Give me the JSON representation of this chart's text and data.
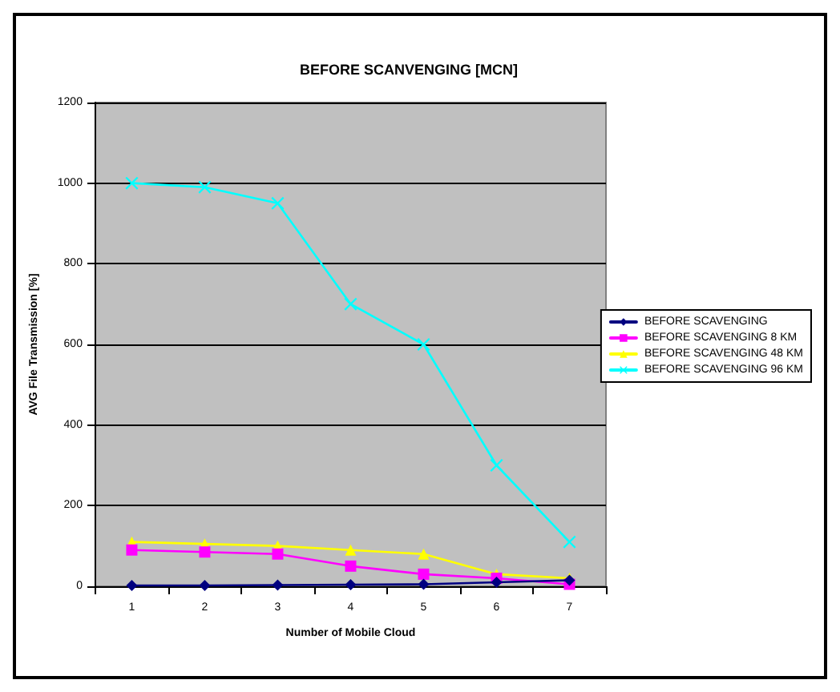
{
  "chart_data": {
    "type": "line",
    "title": "BEFORE SCANVENGING [MCN]",
    "xlabel": "Number of Mobile Cloud",
    "ylabel": "AVG File Transmission [%]",
    "categories": [
      "1",
      "2",
      "3",
      "4",
      "5",
      "6",
      "7"
    ],
    "series": [
      {
        "name": "BEFORE SCAVENGING",
        "color": "#000080",
        "marker": "diamond",
        "values": [
          2,
          2,
          3,
          4,
          5,
          10,
          15
        ]
      },
      {
        "name": "BEFORE SCAVENGING 8 KM",
        "color": "#ff00ff",
        "marker": "square",
        "values": [
          90,
          85,
          80,
          50,
          30,
          20,
          5
        ]
      },
      {
        "name": "BEFORE SCAVENGING 48 KM",
        "color": "#ffff00",
        "marker": "triangle",
        "values": [
          110,
          105,
          100,
          90,
          80,
          30,
          20
        ]
      },
      {
        "name": "BEFORE SCAVENGING 96 KM",
        "color": "#00ffff",
        "marker": "cross",
        "values": [
          1000,
          990,
          950,
          700,
          600,
          300,
          110
        ]
      }
    ],
    "ylim": [
      0,
      1200
    ],
    "yticks": [
      0,
      200,
      400,
      600,
      800,
      1000,
      1200
    ],
    "grid": "y",
    "legend": "right",
    "line_style": "solid"
  }
}
